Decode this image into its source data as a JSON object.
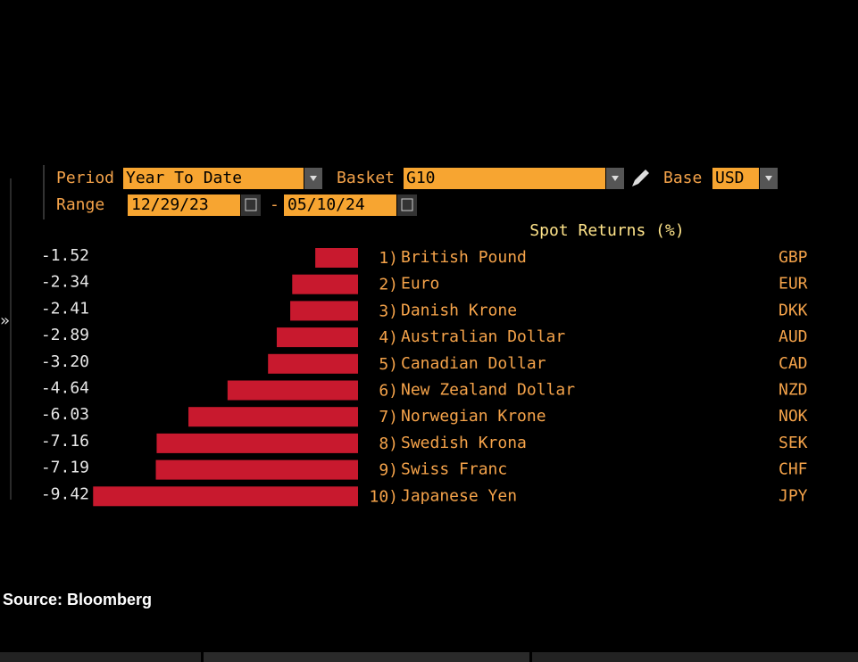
{
  "controls": {
    "period_label": "Period",
    "period": "Year To Date",
    "basket_label": "Basket",
    "basket": "G10",
    "base_label": "Base",
    "base": "USD",
    "range_label": "Range",
    "range_start": "12/29/23",
    "range_sep": "-",
    "range_end": "05/10/24"
  },
  "chart_data": {
    "type": "bar",
    "orientation": "horizontal",
    "title": "Spot Returns (%)",
    "color": "#c8192e",
    "ranks": [
      "1)",
      "2)",
      "3)",
      "4)",
      "5)",
      "6)",
      "7)",
      "8)",
      "9)",
      "10)"
    ],
    "categories": [
      "British Pound",
      "Euro",
      "Danish Krone",
      "Australian Dollar",
      "Canadian Dollar",
      "New Zealand Dollar",
      "Norwegian Krone",
      "Swedish Krona",
      "Swiss Franc",
      "Japanese Yen"
    ],
    "codes": [
      "GBP",
      "EUR",
      "DKK",
      "AUD",
      "CAD",
      "NZD",
      "NOK",
      "SEK",
      "CHF",
      "JPY"
    ],
    "values": [
      -1.52,
      -2.34,
      -2.41,
      -2.89,
      -3.2,
      -4.64,
      -6.03,
      -7.16,
      -7.19,
      -9.42
    ],
    "value_labels": [
      "-1.52",
      "-2.34",
      "-2.41",
      "-2.89",
      "-3.20",
      "-4.64",
      "-6.03",
      "-7.16",
      "-7.19",
      "-9.42"
    ]
  },
  "source": "Source: Bloomberg"
}
